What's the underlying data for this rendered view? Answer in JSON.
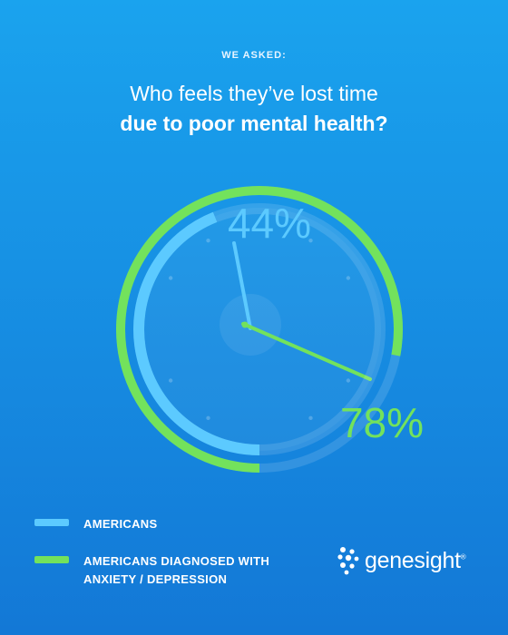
{
  "header": {
    "eyebrow": "WE ASKED:",
    "title_line1": "Who feels they’ve lost time",
    "title_line2": "due to poor mental health?"
  },
  "chart_data": {
    "type": "radial-bar",
    "series": [
      {
        "name": "AMERICANS",
        "value": 44,
        "label": "44%",
        "color": "#5ccaff"
      },
      {
        "name": "AMERICANS DIAGNOSED WITH ANXIETY / DEPRESSION",
        "value": 78,
        "label": "78%",
        "color": "#73e25c"
      }
    ],
    "max": 100
  },
  "legend": [
    {
      "lines": [
        "AMERICANS"
      ],
      "color": "#5ccaff"
    },
    {
      "lines": [
        "AMERICANS DIAGNOSED WITH",
        "ANXIETY / DEPRESSION"
      ],
      "color": "#73e25c"
    }
  ],
  "logo": {
    "text": "genesight",
    "mark": "®"
  }
}
